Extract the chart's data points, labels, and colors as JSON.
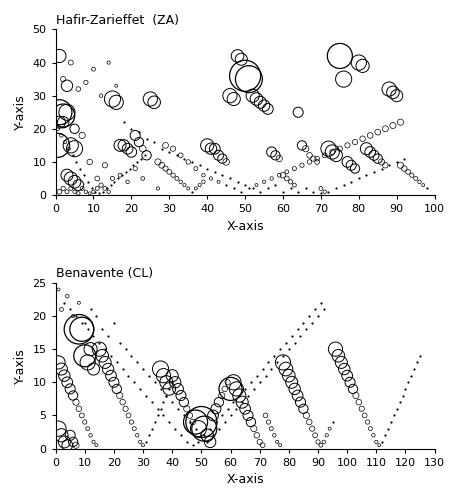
{
  "za_title": "Hafir-Zarieffet  (ZA)",
  "cl_title": "Benavente (CL)",
  "xlabel": "X-axis",
  "ylabel": "Y-axis",
  "za_xlim": [
    0,
    100
  ],
  "za_ylim": [
    0,
    50
  ],
  "cl_xlim": [
    0,
    130
  ],
  "cl_ylim": [
    0,
    25
  ],
  "za_xticks": [
    0,
    10,
    20,
    30,
    40,
    50,
    60,
    70,
    80,
    90,
    100
  ],
  "za_yticks": [
    0,
    10,
    20,
    30,
    40,
    50
  ],
  "cl_xticks": [
    0,
    10,
    20,
    30,
    40,
    50,
    60,
    70,
    80,
    90,
    100,
    110,
    120,
    130
  ],
  "cl_yticks": [
    0,
    5,
    10,
    15,
    20,
    25
  ],
  "za_points": [
    [
      0.5,
      15,
      120
    ],
    [
      1,
      25,
      130
    ],
    [
      2,
      24,
      110
    ],
    [
      3,
      25,
      90
    ],
    [
      4,
      15,
      80
    ],
    [
      5,
      14,
      90
    ],
    [
      1,
      42,
      60
    ],
    [
      1,
      22,
      50
    ],
    [
      2,
      22,
      45
    ],
    [
      3,
      6,
      50
    ],
    [
      4,
      5,
      60
    ],
    [
      5,
      4,
      55
    ],
    [
      6,
      3,
      40
    ],
    [
      1,
      1,
      15
    ],
    [
      2,
      2,
      12
    ],
    [
      3,
      1,
      10
    ],
    [
      4,
      2,
      10
    ],
    [
      5,
      1,
      8
    ],
    [
      6,
      0.5,
      8
    ],
    [
      7,
      2,
      10
    ],
    [
      8,
      1,
      8
    ],
    [
      9,
      0.5,
      6
    ],
    [
      10,
      1,
      8
    ],
    [
      11,
      2,
      10
    ],
    [
      12,
      3,
      12
    ],
    [
      13,
      2,
      10
    ],
    [
      14,
      1,
      8
    ],
    [
      15,
      29,
      90
    ],
    [
      16,
      28,
      70
    ],
    [
      17,
      15,
      50
    ],
    [
      18,
      15,
      45
    ],
    [
      19,
      14,
      40
    ],
    [
      20,
      13,
      38
    ],
    [
      21,
      18,
      35
    ],
    [
      22,
      16,
      30
    ],
    [
      23,
      14,
      28
    ],
    [
      24,
      12,
      30
    ],
    [
      25,
      29,
      70
    ],
    [
      26,
      28,
      55
    ],
    [
      27,
      10,
      25
    ],
    [
      28,
      9,
      22
    ],
    [
      29,
      8,
      18
    ],
    [
      30,
      7,
      15
    ],
    [
      31,
      6,
      12
    ],
    [
      32,
      5,
      10
    ],
    [
      33,
      4,
      8
    ],
    [
      34,
      3,
      7
    ],
    [
      35,
      2,
      6
    ],
    [
      36,
      1,
      5
    ],
    [
      37,
      2,
      6
    ],
    [
      38,
      3,
      7
    ],
    [
      39,
      4,
      8
    ],
    [
      40,
      15,
      60
    ],
    [
      41,
      14,
      45
    ],
    [
      42,
      14,
      40
    ],
    [
      43,
      12,
      35
    ],
    [
      44,
      11,
      30
    ],
    [
      45,
      10,
      28
    ],
    [
      46,
      30,
      70
    ],
    [
      47,
      29,
      60
    ],
    [
      48,
      42,
      55
    ],
    [
      49,
      41,
      50
    ],
    [
      50,
      36,
      200
    ],
    [
      51,
      35,
      150
    ],
    [
      52,
      30,
      60
    ],
    [
      53,
      29,
      55
    ],
    [
      54,
      28,
      50
    ],
    [
      55,
      27,
      45
    ],
    [
      56,
      26,
      40
    ],
    [
      57,
      13,
      35
    ],
    [
      58,
      12,
      30
    ],
    [
      59,
      11,
      25
    ],
    [
      60,
      6,
      20
    ],
    [
      61,
      5,
      15
    ],
    [
      62,
      4,
      12
    ],
    [
      63,
      3,
      10
    ],
    [
      64,
      25,
      35
    ],
    [
      65,
      15,
      30
    ],
    [
      66,
      14,
      25
    ],
    [
      67,
      12,
      20
    ],
    [
      68,
      11,
      18
    ],
    [
      69,
      10,
      15
    ],
    [
      70,
      2,
      10
    ],
    [
      71,
      1,
      8
    ],
    [
      72,
      14,
      80
    ],
    [
      73,
      13,
      70
    ],
    [
      74,
      12,
      55
    ],
    [
      75,
      42,
      130
    ],
    [
      76,
      35,
      90
    ],
    [
      77,
      10,
      40
    ],
    [
      78,
      9,
      35
    ],
    [
      79,
      8,
      30
    ],
    [
      80,
      40,
      80
    ],
    [
      81,
      39,
      60
    ],
    [
      82,
      14,
      50
    ],
    [
      83,
      13,
      40
    ],
    [
      84,
      12,
      35
    ],
    [
      85,
      11,
      30
    ],
    [
      86,
      10,
      25
    ],
    [
      87,
      9,
      20
    ],
    [
      88,
      32,
      70
    ],
    [
      89,
      31,
      55
    ],
    [
      90,
      30,
      50
    ],
    [
      91,
      9,
      25
    ],
    [
      92,
      8,
      20
    ],
    [
      93,
      7,
      15
    ],
    [
      94,
      6,
      12
    ],
    [
      95,
      5,
      10
    ],
    [
      96,
      4,
      8
    ],
    [
      97,
      3,
      6
    ],
    [
      98,
      2,
      5
    ],
    [
      3,
      33,
      45
    ],
    [
      5,
      20,
      30
    ],
    [
      7,
      18,
      25
    ],
    [
      9,
      10,
      20
    ],
    [
      11,
      5,
      15
    ],
    [
      13,
      9,
      18
    ],
    [
      15,
      5,
      12
    ],
    [
      17,
      6,
      10
    ],
    [
      19,
      4,
      8
    ],
    [
      21,
      8,
      12
    ],
    [
      23,
      5,
      9
    ],
    [
      27,
      2,
      7
    ],
    [
      29,
      15,
      22
    ],
    [
      31,
      14,
      18
    ],
    [
      33,
      12,
      15
    ],
    [
      35,
      10,
      13
    ],
    [
      37,
      8,
      10
    ],
    [
      39,
      6,
      8
    ],
    [
      41,
      5,
      7
    ],
    [
      43,
      4,
      6
    ],
    [
      45,
      3,
      5
    ],
    [
      47,
      2,
      4
    ],
    [
      49,
      1,
      4
    ],
    [
      51,
      2,
      5
    ],
    [
      53,
      3,
      6
    ],
    [
      55,
      4,
      7
    ],
    [
      57,
      5,
      8
    ],
    [
      59,
      6,
      9
    ],
    [
      61,
      7,
      10
    ],
    [
      63,
      8,
      11
    ],
    [
      65,
      9,
      12
    ],
    [
      67,
      10,
      13
    ],
    [
      69,
      11,
      14
    ],
    [
      71,
      12,
      15
    ],
    [
      73,
      13,
      16
    ],
    [
      75,
      14,
      17
    ],
    [
      77,
      15,
      18
    ],
    [
      79,
      16,
      19
    ],
    [
      81,
      17,
      20
    ],
    [
      83,
      18,
      21
    ],
    [
      85,
      19,
      22
    ],
    [
      87,
      20,
      23
    ],
    [
      89,
      21,
      24
    ],
    [
      91,
      22,
      25
    ],
    [
      2,
      35,
      18
    ],
    [
      4,
      40,
      16
    ],
    [
      6,
      32,
      14
    ],
    [
      8,
      34,
      12
    ],
    [
      10,
      38,
      10
    ],
    [
      12,
      30,
      8
    ],
    [
      14,
      40,
      7
    ],
    [
      16,
      33,
      6
    ],
    [
      18,
      22,
      5
    ],
    [
      20,
      20,
      4
    ],
    [
      22,
      19,
      4
    ],
    [
      24,
      17,
      3
    ],
    [
      26,
      16,
      3
    ],
    [
      28,
      14,
      3
    ],
    [
      30,
      13,
      3
    ],
    [
      32,
      12,
      3
    ],
    [
      34,
      11,
      3
    ],
    [
      36,
      10,
      3
    ],
    [
      38,
      9,
      3
    ],
    [
      40,
      8,
      3
    ],
    [
      42,
      7,
      3
    ],
    [
      44,
      6,
      3
    ],
    [
      46,
      5,
      3
    ],
    [
      48,
      4,
      3
    ],
    [
      50,
      3,
      3
    ],
    [
      52,
      2,
      3
    ],
    [
      54,
      1,
      3
    ],
    [
      56,
      2,
      3
    ],
    [
      58,
      3,
      3
    ],
    [
      60,
      1,
      3
    ],
    [
      62,
      2,
      3
    ],
    [
      64,
      1,
      3
    ],
    [
      66,
      2,
      3
    ],
    [
      68,
      1,
      3
    ],
    [
      70,
      0.5,
      3
    ],
    [
      72,
      1,
      3
    ],
    [
      74,
      2,
      3
    ],
    [
      76,
      3,
      3
    ],
    [
      78,
      4,
      3
    ],
    [
      80,
      5,
      3
    ],
    [
      82,
      6,
      3
    ],
    [
      84,
      7,
      3
    ],
    [
      86,
      8,
      3
    ],
    [
      88,
      9,
      3
    ],
    [
      90,
      10,
      3
    ],
    [
      92,
      11,
      3
    ],
    [
      0.5,
      20,
      10
    ],
    [
      1.5,
      18,
      8
    ],
    [
      2.5,
      16,
      7
    ],
    [
      3.5,
      14,
      6
    ],
    [
      4.5,
      12,
      5
    ],
    [
      5.5,
      10,
      5
    ],
    [
      6.5,
      8,
      4
    ],
    [
      7.5,
      6,
      4
    ],
    [
      8.5,
      4,
      4
    ],
    [
      9.5,
      2,
      4
    ],
    [
      10.5,
      1,
      4
    ],
    [
      11.5,
      0.5,
      4
    ],
    [
      12.5,
      1,
      3
    ],
    [
      13.5,
      2,
      3
    ],
    [
      14.5,
      3,
      3
    ],
    [
      15.5,
      4,
      3
    ],
    [
      16.5,
      5,
      3
    ],
    [
      17.5,
      6,
      3
    ],
    [
      18.5,
      7,
      3
    ],
    [
      19.5,
      8,
      3
    ],
    [
      20.5,
      9,
      3
    ],
    [
      21.5,
      10,
      3
    ],
    [
      22.5,
      11,
      3
    ],
    [
      23.5,
      12,
      3
    ]
  ],
  "cl_points": [
    [
      1,
      3,
      80
    ],
    [
      2,
      2,
      60
    ],
    [
      3,
      1,
      50
    ],
    [
      4,
      0.5,
      40
    ],
    [
      5,
      2,
      35
    ],
    [
      6,
      1,
      30
    ],
    [
      7,
      0.5,
      25
    ],
    [
      8,
      18,
      180
    ],
    [
      9,
      18,
      120
    ],
    [
      10,
      14,
      100
    ],
    [
      11,
      13,
      80
    ],
    [
      12,
      15,
      60
    ],
    [
      13,
      12,
      50
    ],
    [
      1,
      13,
      60
    ],
    [
      2,
      12,
      50
    ],
    [
      3,
      11,
      45
    ],
    [
      4,
      10,
      40
    ],
    [
      5,
      9,
      35
    ],
    [
      6,
      8,
      30
    ],
    [
      7,
      7,
      25
    ],
    [
      8,
      6,
      20
    ],
    [
      9,
      5,
      15
    ],
    [
      10,
      4,
      12
    ],
    [
      11,
      3,
      10
    ],
    [
      12,
      2,
      8
    ],
    [
      13,
      1,
      7
    ],
    [
      14,
      0.5,
      6
    ],
    [
      15,
      15,
      70
    ],
    [
      16,
      14,
      55
    ],
    [
      17,
      13,
      50
    ],
    [
      18,
      12,
      45
    ],
    [
      19,
      11,
      40
    ],
    [
      20,
      10,
      35
    ],
    [
      21,
      9,
      30
    ],
    [
      22,
      8,
      25
    ],
    [
      23,
      7,
      20
    ],
    [
      24,
      6,
      18
    ],
    [
      25,
      5,
      15
    ],
    [
      26,
      4,
      12
    ],
    [
      27,
      3,
      10
    ],
    [
      28,
      2,
      8
    ],
    [
      29,
      1,
      7
    ],
    [
      30,
      0.5,
      6
    ],
    [
      31,
      1,
      5
    ],
    [
      32,
      2,
      5
    ],
    [
      33,
      3,
      5
    ],
    [
      34,
      4,
      5
    ],
    [
      35,
      5,
      5
    ],
    [
      36,
      6,
      5
    ],
    [
      37,
      7,
      5
    ],
    [
      38,
      8,
      5
    ],
    [
      39,
      9,
      5
    ],
    [
      40,
      10,
      5
    ],
    [
      36,
      12,
      90
    ],
    [
      37,
      11,
      70
    ],
    [
      38,
      10,
      60
    ],
    [
      39,
      9,
      55
    ],
    [
      40,
      11,
      50
    ],
    [
      41,
      10,
      45
    ],
    [
      42,
      9,
      40
    ],
    [
      43,
      8,
      35
    ],
    [
      44,
      7,
      30
    ],
    [
      45,
      6,
      25
    ],
    [
      46,
      5,
      22
    ],
    [
      47,
      4,
      20
    ],
    [
      48,
      4,
      120
    ],
    [
      49,
      3,
      90
    ],
    [
      50,
      4,
      200
    ],
    [
      51,
      3,
      130
    ],
    [
      52,
      2,
      55
    ],
    [
      53,
      1,
      45
    ],
    [
      54,
      5,
      40
    ],
    [
      55,
      6,
      35
    ],
    [
      56,
      7,
      30
    ],
    [
      57,
      8,
      25
    ],
    [
      58,
      9,
      20
    ],
    [
      59,
      10,
      18
    ],
    [
      60,
      9,
      110
    ],
    [
      61,
      10,
      80
    ],
    [
      62,
      9,
      70
    ],
    [
      63,
      8,
      60
    ],
    [
      64,
      7,
      50
    ],
    [
      65,
      6,
      40
    ],
    [
      66,
      5,
      35
    ],
    [
      67,
      4,
      30
    ],
    [
      68,
      3,
      25
    ],
    [
      69,
      2,
      20
    ],
    [
      70,
      1,
      18
    ],
    [
      71,
      0.5,
      15
    ],
    [
      72,
      5,
      14
    ],
    [
      73,
      4,
      12
    ],
    [
      74,
      3,
      10
    ],
    [
      75,
      2,
      8
    ],
    [
      76,
      1,
      7
    ],
    [
      77,
      0.5,
      6
    ],
    [
      78,
      13,
      80
    ],
    [
      79,
      12,
      65
    ],
    [
      80,
      11,
      55
    ],
    [
      81,
      10,
      50
    ],
    [
      82,
      9,
      45
    ],
    [
      83,
      8,
      40
    ],
    [
      84,
      7,
      35
    ],
    [
      85,
      6,
      30
    ],
    [
      86,
      5,
      25
    ],
    [
      87,
      4,
      20
    ],
    [
      88,
      3,
      18
    ],
    [
      89,
      2,
      15
    ],
    [
      90,
      1,
      12
    ],
    [
      91,
      0.5,
      10
    ],
    [
      92,
      1,
      8
    ],
    [
      93,
      2,
      7
    ],
    [
      94,
      3,
      6
    ],
    [
      95,
      4,
      5
    ],
    [
      96,
      15,
      70
    ],
    [
      97,
      14,
      55
    ],
    [
      98,
      13,
      50
    ],
    [
      99,
      12,
      45
    ],
    [
      100,
      11,
      40
    ],
    [
      101,
      10,
      35
    ],
    [
      102,
      9,
      30
    ],
    [
      103,
      8,
      25
    ],
    [
      104,
      7,
      20
    ],
    [
      105,
      6,
      18
    ],
    [
      106,
      5,
      15
    ],
    [
      107,
      4,
      12
    ],
    [
      108,
      3,
      10
    ],
    [
      109,
      2,
      8
    ],
    [
      110,
      1,
      7
    ],
    [
      111,
      0.5,
      6
    ],
    [
      112,
      1,
      5
    ],
    [
      113,
      2,
      5
    ],
    [
      114,
      3,
      5
    ],
    [
      115,
      4,
      5
    ],
    [
      116,
      5,
      5
    ],
    [
      117,
      6,
      5
    ],
    [
      118,
      7,
      5
    ],
    [
      119,
      8,
      5
    ],
    [
      120,
      9,
      5
    ],
    [
      121,
      10,
      5
    ],
    [
      122,
      11,
      5
    ],
    [
      123,
      12,
      5
    ],
    [
      124,
      13,
      5
    ],
    [
      125,
      14,
      5
    ],
    [
      2,
      21,
      10
    ],
    [
      4,
      23,
      8
    ],
    [
      6,
      20,
      7
    ],
    [
      8,
      22,
      6
    ],
    [
      10,
      19,
      5
    ],
    [
      12,
      21,
      5
    ],
    [
      14,
      20,
      4
    ],
    [
      16,
      18,
      4
    ],
    [
      18,
      17,
      4
    ],
    [
      20,
      19,
      3
    ],
    [
      22,
      16,
      3
    ],
    [
      24,
      15,
      3
    ],
    [
      26,
      14,
      3
    ],
    [
      28,
      13,
      3
    ],
    [
      30,
      12,
      3
    ],
    [
      32,
      11,
      3
    ],
    [
      34,
      10,
      3
    ],
    [
      36,
      9,
      3
    ],
    [
      38,
      8,
      3
    ],
    [
      40,
      7,
      3
    ],
    [
      42,
      6,
      3
    ],
    [
      44,
      5,
      3
    ],
    [
      46,
      4,
      3
    ],
    [
      48,
      3,
      3
    ],
    [
      50,
      2,
      3
    ],
    [
      52,
      1,
      3
    ],
    [
      54,
      2,
      3
    ],
    [
      56,
      3,
      3
    ],
    [
      58,
      4,
      3
    ],
    [
      60,
      5,
      3
    ],
    [
      62,
      6,
      3
    ],
    [
      64,
      7,
      3
    ],
    [
      66,
      8,
      3
    ],
    [
      68,
      9,
      3
    ],
    [
      70,
      10,
      3
    ],
    [
      72,
      11,
      3
    ],
    [
      74,
      12,
      3
    ],
    [
      76,
      13,
      3
    ],
    [
      78,
      14,
      3
    ],
    [
      80,
      15,
      3
    ],
    [
      82,
      16,
      3
    ],
    [
      84,
      17,
      3
    ],
    [
      86,
      18,
      3
    ],
    [
      88,
      19,
      3
    ],
    [
      90,
      20,
      3
    ],
    [
      92,
      21,
      3
    ],
    [
      1,
      24,
      6
    ],
    [
      3,
      22,
      5
    ],
    [
      5,
      21,
      4
    ],
    [
      7,
      20,
      4
    ],
    [
      9,
      19,
      4
    ],
    [
      11,
      18,
      4
    ],
    [
      13,
      17,
      4
    ],
    [
      15,
      16,
      4
    ],
    [
      17,
      15,
      4
    ],
    [
      19,
      14,
      4
    ],
    [
      21,
      13,
      4
    ],
    [
      23,
      12,
      4
    ],
    [
      25,
      11,
      4
    ],
    [
      27,
      10,
      4
    ],
    [
      29,
      9,
      4
    ],
    [
      31,
      8,
      4
    ],
    [
      33,
      7,
      4
    ],
    [
      35,
      6,
      4
    ],
    [
      37,
      5,
      4
    ],
    [
      39,
      4,
      4
    ],
    [
      41,
      3,
      4
    ],
    [
      43,
      2,
      4
    ],
    [
      45,
      1,
      4
    ],
    [
      47,
      0.5,
      4
    ],
    [
      49,
      1,
      4
    ],
    [
      51,
      2,
      4
    ],
    [
      53,
      3,
      4
    ],
    [
      55,
      4,
      4
    ],
    [
      57,
      5,
      4
    ],
    [
      59,
      6,
      4
    ],
    [
      61,
      7,
      4
    ],
    [
      63,
      8,
      4
    ],
    [
      65,
      9,
      4
    ],
    [
      67,
      10,
      4
    ],
    [
      69,
      11,
      4
    ],
    [
      71,
      12,
      4
    ],
    [
      73,
      13,
      4
    ],
    [
      75,
      14,
      4
    ],
    [
      77,
      15,
      4
    ],
    [
      79,
      16,
      4
    ],
    [
      81,
      17,
      4
    ],
    [
      83,
      18,
      4
    ],
    [
      85,
      19,
      4
    ],
    [
      87,
      20,
      4
    ],
    [
      89,
      21,
      4
    ],
    [
      91,
      22,
      4
    ]
  ]
}
